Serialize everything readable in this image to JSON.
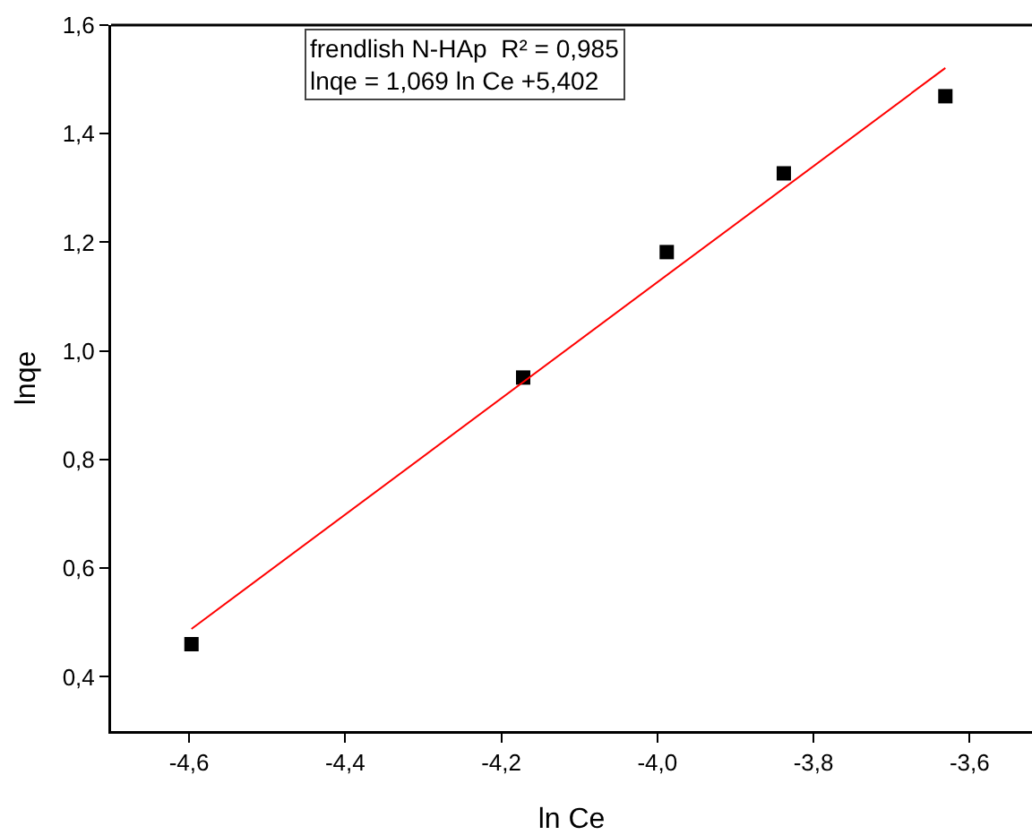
{
  "chart_data": {
    "type": "scatter",
    "xlabel": "ln Ce",
    "ylabel": "lnqe",
    "annotations": [
      "frendlish N-HAp  R² = 0,985\nlnqe = 1,069 ln Ce +5,402"
    ],
    "xlim": [
      -4.7,
      -3.52
    ],
    "ylim": [
      0.3,
      1.6
    ],
    "xticks": [
      {
        "value": -4.6,
        "label": "-4,6"
      },
      {
        "value": -4.4,
        "label": "-4,4"
      },
      {
        "value": -4.2,
        "label": "-4,2"
      },
      {
        "value": -4.0,
        "label": "-4,0"
      },
      {
        "value": -3.8,
        "label": "-3,8"
      },
      {
        "value": -3.6,
        "label": "-3,6"
      }
    ],
    "yticks": [
      {
        "value": 0.4,
        "label": "0,4"
      },
      {
        "value": 0.6,
        "label": "0,6"
      },
      {
        "value": 0.8,
        "label": "0,8"
      },
      {
        "value": 1.0,
        "label": "1,0"
      },
      {
        "value": 1.2,
        "label": "1,2"
      },
      {
        "value": 1.4,
        "label": "1,4"
      },
      {
        "value": 1.6,
        "label": "1,6"
      }
    ],
    "grid": false,
    "marker": "square",
    "series": [
      {
        "color": "#000000",
        "x": [
          -4.597,
          -4.172,
          -3.988,
          -3.838,
          -3.631
        ],
        "values": [
          0.46,
          0.951,
          1.182,
          1.327,
          1.469
        ]
      },
      {
        "type": "line",
        "color": "#ff0000",
        "marker": "none",
        "x": [
          -4.597,
          -3.631
        ],
        "values": [
          0.488,
          1.521
        ]
      }
    ]
  }
}
